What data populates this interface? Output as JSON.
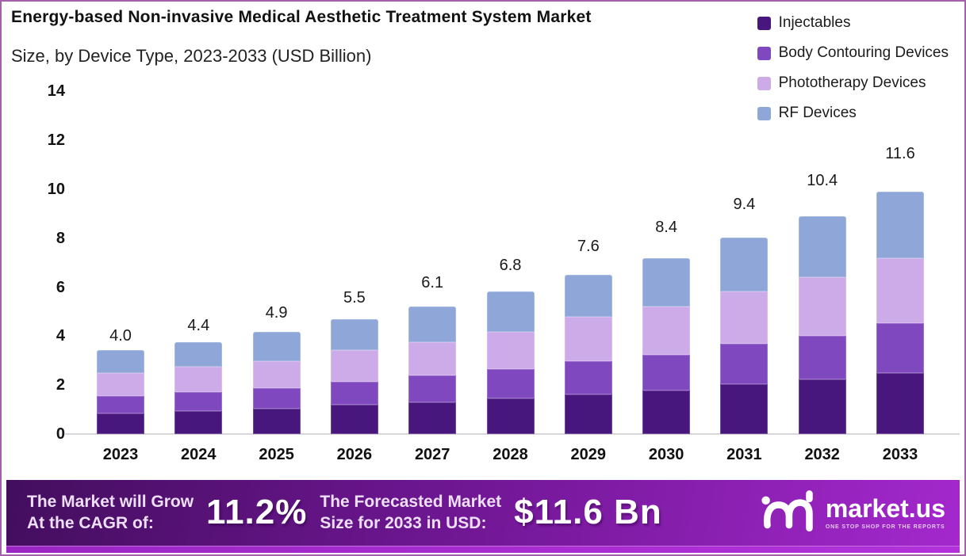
{
  "header": {
    "title_line1": "Energy-based Non-invasive Medical Aesthetic Treatment System Market",
    "title_line2": "Size, by Device Type, 2023-2033 (USD Billion)"
  },
  "chart_data": {
    "type": "bar",
    "stacked": true,
    "title": "Energy-based Non-invasive Medical Aesthetic Treatment System Market Size, by Device Type, 2023-2033 (USD Billion)",
    "unit": "USD Billion",
    "categories": [
      "2023",
      "2024",
      "2025",
      "2026",
      "2027",
      "2028",
      "2029",
      "2030",
      "2031",
      "2032",
      "2033"
    ],
    "series": [
      {
        "name": "Injectables",
        "color": "#48177e",
        "values": [
          1.0,
          1.1,
          1.2,
          1.4,
          1.5,
          1.7,
          1.9,
          2.1,
          2.4,
          2.6,
          2.9
        ]
      },
      {
        "name": "Body Contouring Devices",
        "color": "#8048bf",
        "values": [
          0.8,
          0.9,
          1.0,
          1.1,
          1.3,
          1.4,
          1.6,
          1.7,
          1.9,
          2.1,
          2.4
        ]
      },
      {
        "name": "Phototherapy Devices",
        "color": "#cdaae8",
        "values": [
          1.1,
          1.2,
          1.3,
          1.5,
          1.6,
          1.8,
          2.1,
          2.3,
          2.5,
          2.8,
          3.1
        ]
      },
      {
        "name": "RF Devices",
        "color": "#8ea7d8",
        "values": [
          1.1,
          1.2,
          1.4,
          1.5,
          1.7,
          1.9,
          2.0,
          2.3,
          2.6,
          2.9,
          3.2
        ]
      }
    ],
    "totals": [
      "4.0",
      "4.4",
      "4.9",
      "5.5",
      "6.1",
      "6.8",
      "7.6",
      "8.4",
      "9.4",
      "10.4",
      "11.6"
    ],
    "y_ticks": [
      0,
      2,
      4,
      6,
      8,
      10,
      12,
      14
    ],
    "ylim": [
      0,
      14
    ],
    "xlabel": "",
    "ylabel": "",
    "grid": false,
    "legend_position": "top-right"
  },
  "banner": {
    "cagr_label_line1": "The Market will Grow",
    "cagr_label_line2": "At the CAGR of:",
    "cagr_value": "11.2%",
    "forecast_label_line1": "The Forecasted Market",
    "forecast_label_line2": "Size for 2033 in USD:",
    "forecast_value": "$11.6 Bn",
    "brand_name": "market.us",
    "brand_tagline": "ONE STOP SHOP FOR THE REPORTS"
  },
  "colors": {
    "page_border": "#a361aa",
    "banner_gradient_start": "#430e5e",
    "banner_gradient_end": "#a428cd",
    "banner_bottom_strip": "#b231da",
    "baseline": "#d6d6db"
  }
}
